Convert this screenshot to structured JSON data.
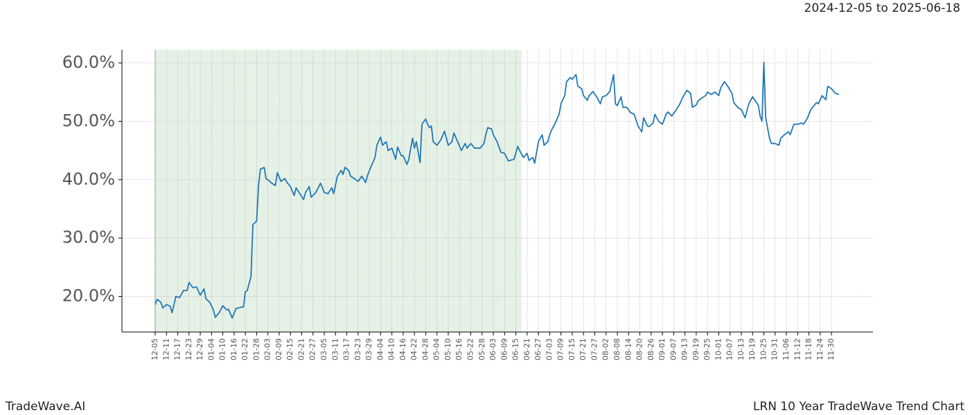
{
  "chart_data": {
    "type": "line",
    "title": "2024-12-05 to 2025-06-18",
    "footer_left": "TradeWave.AI",
    "footer_right": "LRN 10 Year TradeWave Trend Chart",
    "highlight_range": [
      0,
      195
    ],
    "highlight_color": "#e6f1e6",
    "grid": true,
    "xlim": [
      -17.7,
      382.1
    ],
    "ylim": [
      13.9,
      62.25
    ],
    "yticks": [
      {
        "value": 20,
        "label": "20.0%"
      },
      {
        "value": 30,
        "label": "30.0%"
      },
      {
        "value": 40,
        "label": "40.0%"
      },
      {
        "value": 50,
        "label": "50.0%"
      },
      {
        "value": 60,
        "label": "60.0%"
      }
    ],
    "xticks": [
      {
        "value": 0,
        "label": "12-05"
      },
      {
        "value": 6,
        "label": "12-11"
      },
      {
        "value": 12,
        "label": "12-17"
      },
      {
        "value": 18,
        "label": "12-23"
      },
      {
        "value": 24,
        "label": "12-29"
      },
      {
        "value": 30,
        "label": "01-04"
      },
      {
        "value": 36,
        "label": "01-10"
      },
      {
        "value": 42,
        "label": "01-16"
      },
      {
        "value": 48,
        "label": "01-22"
      },
      {
        "value": 54,
        "label": "01-28"
      },
      {
        "value": 60,
        "label": "02-03"
      },
      {
        "value": 66,
        "label": "02-09"
      },
      {
        "value": 72,
        "label": "02-15"
      },
      {
        "value": 78,
        "label": "02-21"
      },
      {
        "value": 84,
        "label": "02-27"
      },
      {
        "value": 90,
        "label": "03-05"
      },
      {
        "value": 96,
        "label": "03-11"
      },
      {
        "value": 102,
        "label": "03-17"
      },
      {
        "value": 108,
        "label": "03-23"
      },
      {
        "value": 114,
        "label": "03-29"
      },
      {
        "value": 120,
        "label": "04-04"
      },
      {
        "value": 126,
        "label": "04-10"
      },
      {
        "value": 132,
        "label": "04-16"
      },
      {
        "value": 138,
        "label": "04-22"
      },
      {
        "value": 144,
        "label": "04-28"
      },
      {
        "value": 150,
        "label": "05-04"
      },
      {
        "value": 156,
        "label": "05-10"
      },
      {
        "value": 162,
        "label": "05-16"
      },
      {
        "value": 168,
        "label": "05-22"
      },
      {
        "value": 174,
        "label": "05-28"
      },
      {
        "value": 180,
        "label": "06-03"
      },
      {
        "value": 186,
        "label": "06-09"
      },
      {
        "value": 192,
        "label": "06-15"
      },
      {
        "value": 198,
        "label": "06-21"
      },
      {
        "value": 204,
        "label": "06-27"
      },
      {
        "value": 210,
        "label": "07-03"
      },
      {
        "value": 216,
        "label": "07-09"
      },
      {
        "value": 222,
        "label": "07-15"
      },
      {
        "value": 228,
        "label": "07-21"
      },
      {
        "value": 234,
        "label": "07-27"
      },
      {
        "value": 240,
        "label": "08-02"
      },
      {
        "value": 246,
        "label": "08-08"
      },
      {
        "value": 252,
        "label": "08-14"
      },
      {
        "value": 258,
        "label": "08-20"
      },
      {
        "value": 264,
        "label": "08-26"
      },
      {
        "value": 270,
        "label": "09-01"
      },
      {
        "value": 276,
        "label": "09-07"
      },
      {
        "value": 282,
        "label": "09-13"
      },
      {
        "value": 288,
        "label": "09-19"
      },
      {
        "value": 294,
        "label": "09-25"
      },
      {
        "value": 300,
        "label": "10-01"
      },
      {
        "value": 306,
        "label": "10-07"
      },
      {
        "value": 312,
        "label": "10-13"
      },
      {
        "value": 318,
        "label": "10-19"
      },
      {
        "value": 324,
        "label": "10-25"
      },
      {
        "value": 330,
        "label": "10-31"
      },
      {
        "value": 336,
        "label": "11-06"
      },
      {
        "value": 342,
        "label": "11-12"
      },
      {
        "value": 348,
        "label": "11-18"
      },
      {
        "value": 354,
        "label": "11-24"
      },
      {
        "value": 360,
        "label": "11-30"
      }
    ],
    "x": [
      0,
      1,
      3,
      4,
      6,
      8,
      9,
      11,
      13,
      14,
      15,
      17,
      18,
      20,
      22,
      24,
      26,
      27,
      29,
      31,
      32,
      34,
      36,
      38,
      39,
      41,
      43,
      45,
      47,
      48,
      49,
      51,
      52,
      54,
      55,
      56,
      58,
      59,
      61,
      62,
      64,
      65,
      67,
      69,
      70,
      72,
      74,
      75,
      77,
      79,
      80,
      82,
      83,
      85,
      86,
      88,
      90,
      92,
      94,
      95,
      97,
      99,
      100,
      101,
      103,
      104,
      106,
      108,
      110,
      112,
      113,
      115,
      117,
      118,
      120,
      121,
      123,
      124,
      126,
      128,
      129,
      131,
      132,
      134,
      135,
      137,
      138,
      139,
      141,
      142,
      144,
      145,
      146,
      147,
      148,
      150,
      152,
      154,
      156,
      158,
      159,
      161,
      163,
      165,
      166,
      168,
      170,
      172,
      173,
      175,
      176,
      177,
      179,
      180,
      182,
      184,
      186,
      188,
      189,
      191,
      193,
      194,
      196,
      198,
      199,
      201,
      202,
      204,
      205,
      206,
      207,
      209,
      210,
      211,
      213,
      215,
      216,
      218,
      219,
      221,
      222,
      224,
      225,
      227,
      228,
      230,
      231,
      233,
      235,
      237,
      238,
      240,
      242,
      244,
      245,
      246,
      248,
      249,
      251,
      253,
      255,
      257,
      259,
      260,
      262,
      263,
      265,
      266,
      268,
      270,
      272,
      273,
      275,
      277,
      279,
      281,
      283,
      285,
      286,
      288,
      289,
      291,
      293,
      294,
      296,
      298,
      300,
      301,
      303,
      305,
      307,
      308,
      310,
      312,
      314,
      316,
      318,
      321,
      322,
      323,
      324,
      325,
      327,
      328,
      330,
      332,
      333,
      335,
      337,
      338,
      340,
      342,
      344,
      345,
      347,
      349,
      350,
      352,
      353,
      355,
      357,
      358,
      360,
      362,
      364
    ],
    "series": [
      {
        "color": "#1f77b4",
        "values": [
          18.6,
          19.5,
          19.0,
          18.0,
          18.6,
          18.3,
          17.2,
          20.0,
          19.8,
          20.4,
          21.0,
          21.0,
          22.4,
          21.5,
          21.6,
          20.2,
          21.3,
          19.6,
          19.0,
          17.7,
          16.4,
          17.2,
          18.4,
          17.7,
          17.8,
          16.3,
          17.9,
          18.1,
          18.2,
          20.8,
          21.0,
          23.4,
          32.3,
          32.9,
          39.0,
          41.8,
          42.1,
          40.2,
          39.7,
          39.4,
          39.0,
          41.2,
          39.7,
          40.2,
          39.6,
          38.8,
          37.3,
          38.6,
          37.6,
          36.6,
          37.8,
          38.8,
          37.0,
          37.6,
          38.1,
          39.4,
          37.8,
          37.6,
          38.6,
          37.6,
          40.6,
          41.6,
          40.9,
          42.1,
          41.6,
          40.6,
          40.2,
          39.7,
          40.6,
          39.5,
          40.7,
          42.3,
          43.8,
          45.9,
          47.3,
          45.9,
          46.5,
          45.0,
          45.4,
          43.5,
          45.6,
          44.1,
          44.1,
          42.6,
          43.5,
          47.1,
          45.4,
          46.5,
          42.9,
          49.5,
          50.4,
          49.5,
          48.9,
          49.2,
          46.5,
          45.9,
          46.8,
          48.3,
          45.9,
          46.5,
          48.0,
          46.5,
          45.0,
          46.2,
          45.4,
          46.2,
          45.4,
          45.4,
          45.4,
          46.2,
          47.7,
          48.9,
          48.7,
          47.7,
          46.5,
          44.7,
          44.5,
          43.2,
          43.3,
          43.5,
          45.7,
          45.0,
          43.8,
          44.5,
          43.3,
          43.8,
          42.8,
          46.5,
          47.1,
          47.7,
          45.9,
          46.5,
          47.7,
          48.5,
          49.7,
          51.2,
          53.0,
          54.4,
          56.8,
          57.5,
          57.2,
          58.0,
          56.0,
          55.6,
          54.4,
          53.6,
          54.4,
          55.1,
          54.2,
          53.0,
          54.2,
          54.4,
          55.1,
          58.0,
          53.0,
          52.7,
          54.2,
          52.4,
          52.4,
          51.5,
          51.2,
          49.2,
          48.2,
          50.6,
          49.2,
          49.1,
          49.7,
          51.2,
          50.0,
          49.5,
          51.2,
          51.6,
          50.9,
          51.8,
          52.8,
          54.2,
          55.3,
          54.8,
          52.4,
          52.8,
          53.5,
          54.0,
          54.4,
          55.0,
          54.6,
          55.0,
          54.4,
          55.7,
          56.8,
          55.9,
          54.8,
          53.2,
          52.4,
          52.0,
          50.6,
          53.0,
          54.2,
          52.8,
          50.9,
          50.0,
          60.1,
          50.6,
          47.1,
          46.2,
          46.2,
          45.9,
          47.1,
          47.7,
          48.2,
          47.7,
          49.5,
          49.5,
          49.7,
          49.5,
          50.4,
          52.0,
          52.4,
          53.2,
          53.0,
          54.4,
          53.7,
          56.0,
          55.6,
          54.8,
          54.6
        ]
      }
    ]
  }
}
